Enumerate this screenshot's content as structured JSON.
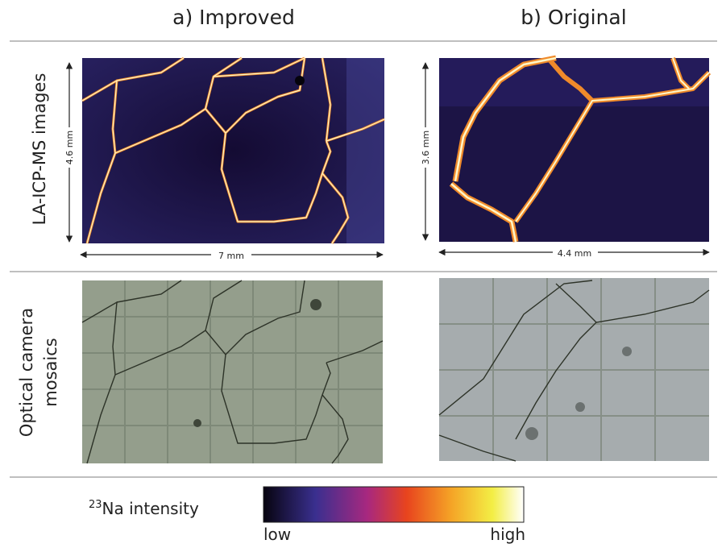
{
  "columns": {
    "a": "a) Improved",
    "b": "b) Original"
  },
  "rows": {
    "laicpms": "LA-ICP-MS images",
    "optical": [
      "Optical camera",
      "mosaics"
    ]
  },
  "scales": {
    "a_height": "4.6 mm",
    "a_width": "7 mm",
    "b_height": "3.6 mm",
    "b_width": "4.4 mm"
  },
  "colorbar": {
    "isotope_mass": "23",
    "label": "Na intensity",
    "low": "low",
    "high": "high"
  }
}
